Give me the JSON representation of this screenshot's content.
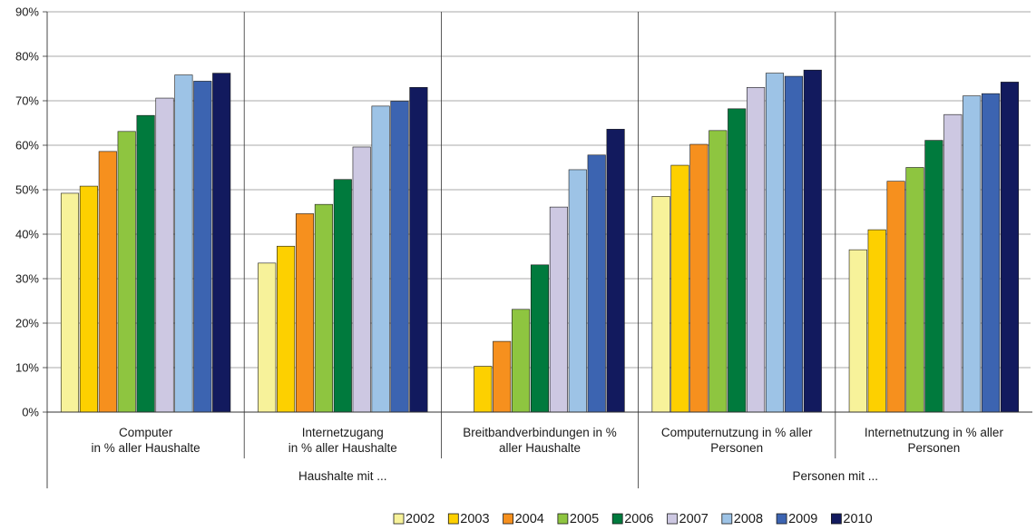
{
  "chart_data": {
    "type": "bar",
    "title": "",
    "xlabel": "",
    "ylabel": "",
    "ylim": [
      0,
      90
    ],
    "yticks": [
      0,
      10,
      20,
      30,
      40,
      50,
      60,
      70,
      80,
      90
    ],
    "ytick_format": "{v}%",
    "grid": true,
    "legend_position": "bottom",
    "categories": [
      [
        "Computer",
        "in % aller Haushalte"
      ],
      [
        "Internetzugang",
        "in % aller Haushalte"
      ],
      [
        "Breitbandverbindungen in %",
        "aller Haushalte"
      ],
      [
        "Computernutzung in % aller",
        "Personen"
      ],
      [
        "Internetnutzung in % aller",
        "Personen"
      ]
    ],
    "groups": [
      {
        "label": "Haushalte mit ...",
        "span": [
          0,
          2
        ]
      },
      {
        "label": "Personen mit ...",
        "span": [
          3,
          4
        ]
      }
    ],
    "series": [
      {
        "name": "2002",
        "color": "#f7f29a",
        "values": [
          49.2,
          33.5,
          null,
          48.5,
          36.5
        ]
      },
      {
        "name": "2003",
        "color": "#fdd000",
        "values": [
          50.8,
          37.3,
          10.3,
          55.5,
          41.0
        ]
      },
      {
        "name": "2004",
        "color": "#f6901e",
        "values": [
          58.6,
          44.6,
          15.9,
          60.2,
          51.9
        ]
      },
      {
        "name": "2005",
        "color": "#8ec540",
        "values": [
          63.1,
          46.7,
          23.1,
          63.3,
          55.0
        ]
      },
      {
        "name": "2006",
        "color": "#007a3d",
        "values": [
          66.7,
          52.3,
          33.1,
          68.2,
          61.1
        ]
      },
      {
        "name": "2007",
        "color": "#cdc8e2",
        "values": [
          70.6,
          59.6,
          46.1,
          73.0,
          66.9
        ]
      },
      {
        "name": "2008",
        "color": "#9dc3e6",
        "values": [
          75.8,
          68.8,
          54.5,
          76.2,
          71.1
        ]
      },
      {
        "name": "2009",
        "color": "#3c64b1",
        "values": [
          74.4,
          69.9,
          57.8,
          75.5,
          71.6
        ]
      },
      {
        "name": "2010",
        "color": "#121a5e",
        "values": [
          76.2,
          73.0,
          63.6,
          76.9,
          74.2
        ]
      }
    ]
  }
}
